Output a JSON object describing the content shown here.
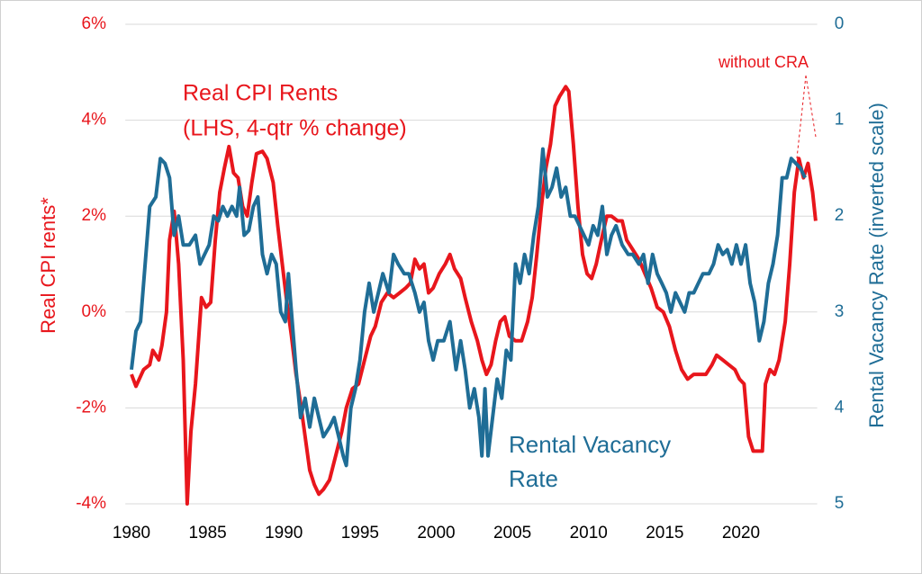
{
  "chart_data": {
    "type": "line",
    "xlim": [
      1979.6,
      2025.0
    ],
    "xticks": [
      1980,
      1985,
      1990,
      1995,
      2000,
      2005,
      2010,
      2015,
      2020
    ],
    "ylim": [
      -4,
      6
    ],
    "yticks": [
      {
        "value": -4,
        "label": "-4%"
      },
      {
        "value": -2,
        "label": "-2%"
      },
      {
        "value": 0,
        "label": "0%"
      },
      {
        "value": 2,
        "label": "2%"
      },
      {
        "value": 4,
        "label": "4%"
      },
      {
        "value": 6,
        "label": "6%"
      }
    ],
    "y2lim": [
      0,
      5
    ],
    "y2_inverted": true,
    "y2ticks": [
      0,
      1,
      2,
      3,
      4,
      5
    ],
    "ylabel": "Real CPI rents*",
    "y2label": "Rental Vacancy Rate (inverted scale)",
    "grid": true,
    "annotations": [
      "(LHS, 4-qtr % change)",
      "without CRA"
    ],
    "series": [
      {
        "name": "Real CPI Rents",
        "color": "#e8161c",
        "x": [
          1980.0,
          1980.3,
          1980.8,
          1981.2,
          1981.4,
          1981.8,
          1982.0,
          1982.3,
          1982.5,
          1982.8,
          1983.1,
          1983.4,
          1983.66,
          1983.9,
          1984.2,
          1984.6,
          1984.9,
          1985.2,
          1985.5,
          1985.8,
          1986.1,
          1986.4,
          1986.7,
          1987.0,
          1987.3,
          1987.6,
          1987.9,
          1988.2,
          1988.6,
          1988.9,
          1989.3,
          1989.6,
          1989.9,
          1990.2,
          1990.5,
          1990.8,
          1991.1,
          1991.4,
          1991.7,
          1992.0,
          1992.3,
          1992.6,
          1993.0,
          1993.4,
          1993.8,
          1994.1,
          1994.5,
          1994.9,
          1995.3,
          1995.7,
          1996.0,
          1996.4,
          1996.8,
          1997.2,
          1997.6,
          1998.0,
          1998.3,
          1998.6,
          1998.9,
          1999.2,
          1999.5,
          1999.8,
          2000.2,
          2000.6,
          2000.9,
          2001.2,
          2001.6,
          2001.9,
          2002.3,
          2002.7,
          2003.0,
          2003.3,
          2003.6,
          2003.9,
          2004.2,
          2004.5,
          2004.8,
          2005.2,
          2005.6,
          2006.0,
          2006.3,
          2006.6,
          2006.9,
          2007.2,
          2007.5,
          2007.8,
          2008.1,
          2008.5,
          2008.7,
          2009.0,
          2009.3,
          2009.6,
          2009.9,
          2010.2,
          2010.5,
          2010.9,
          2011.2,
          2011.5,
          2011.9,
          2012.2,
          2012.5,
          2012.9,
          2013.3,
          2013.7,
          2014.1,
          2014.5,
          2014.9,
          2015.3,
          2015.7,
          2016.1,
          2016.5,
          2016.9,
          2017.3,
          2017.7,
          2018.1,
          2018.4,
          2018.8,
          2019.2,
          2019.6,
          2019.9,
          2020.2,
          2020.5,
          2020.8,
          2021.1,
          2021.4,
          2021.6,
          2021.9,
          2022.2,
          2022.5,
          2022.9,
          2023.2,
          2023.5,
          2023.8,
          2024.1,
          2024.4,
          2024.7,
          2024.9
        ],
        "values": [
          -1.3,
          -1.55,
          -1.2,
          -1.1,
          -0.8,
          -1.0,
          -0.7,
          0.0,
          1.5,
          2.1,
          1.0,
          -1.0,
          -4.0,
          -2.5,
          -1.5,
          0.3,
          0.1,
          0.2,
          1.5,
          2.5,
          3.0,
          3.45,
          2.9,
          2.8,
          2.2,
          2.0,
          2.7,
          3.3,
          3.35,
          3.2,
          2.7,
          1.8,
          1.0,
          0.2,
          -0.5,
          -1.3,
          -1.9,
          -2.6,
          -3.3,
          -3.6,
          -3.8,
          -3.7,
          -3.5,
          -3.0,
          -2.5,
          -2.0,
          -1.6,
          -1.5,
          -1.0,
          -0.5,
          -0.3,
          0.2,
          0.4,
          0.3,
          0.4,
          0.5,
          0.6,
          1.1,
          0.9,
          1.0,
          0.4,
          0.5,
          0.8,
          1.0,
          1.2,
          0.9,
          0.7,
          0.3,
          -0.2,
          -0.6,
          -1.0,
          -1.3,
          -1.1,
          -0.6,
          -0.2,
          -0.1,
          -0.5,
          -0.6,
          -0.6,
          -0.2,
          0.3,
          1.2,
          2.2,
          3.0,
          3.5,
          4.3,
          4.5,
          4.7,
          4.6,
          3.5,
          2.2,
          1.2,
          0.8,
          0.7,
          1.0,
          1.6,
          2.0,
          2.0,
          1.9,
          1.9,
          1.5,
          1.3,
          1.1,
          0.8,
          0.5,
          0.1,
          0.0,
          -0.3,
          -0.8,
          -1.2,
          -1.4,
          -1.3,
          -1.3,
          -1.3,
          -1.1,
          -0.9,
          -1.0,
          -1.1,
          -1.2,
          -1.4,
          -1.5,
          -2.6,
          -2.9,
          -2.9,
          -2.9,
          -1.5,
          -1.2,
          -1.3,
          -1.0,
          -0.2,
          1.0,
          2.5,
          3.2,
          2.8,
          3.1,
          2.5,
          1.9
        ]
      },
      {
        "name": "Rental Vacancy Rate",
        "color": "#1f6d96",
        "axis": "y2",
        "x": [
          1980.0,
          1980.3,
          1980.6,
          1980.9,
          1981.2,
          1981.6,
          1981.9,
          1982.2,
          1982.5,
          1982.8,
          1983.1,
          1983.4,
          1983.8,
          1984.2,
          1984.5,
          1984.8,
          1985.1,
          1985.4,
          1985.7,
          1986.0,
          1986.3,
          1986.6,
          1986.9,
          1987.1,
          1987.4,
          1987.7,
          1988.0,
          1988.3,
          1988.6,
          1988.9,
          1989.2,
          1989.5,
          1989.8,
          1990.1,
          1990.3,
          1990.5,
          1990.8,
          1991.1,
          1991.4,
          1991.7,
          1992.0,
          1992.3,
          1992.6,
          1993.0,
          1993.3,
          1993.6,
          1993.9,
          1994.1,
          1994.4,
          1994.7,
          1995.0,
          1995.3,
          1995.6,
          1995.9,
          1996.2,
          1996.5,
          1996.9,
          1997.2,
          1997.5,
          1997.9,
          1998.2,
          1998.6,
          1998.9,
          1999.2,
          1999.5,
          1999.8,
          2000.1,
          2000.5,
          2000.9,
          2001.3,
          2001.6,
          2001.9,
          2002.2,
          2002.5,
          2002.8,
          2003.0,
          2003.2,
          2003.4,
          2003.7,
          2004.0,
          2004.3,
          2004.6,
          2004.9,
          2005.2,
          2005.5,
          2005.8,
          2006.1,
          2006.4,
          2006.7,
          2007.0,
          2007.3,
          2007.6,
          2007.9,
          2008.2,
          2008.5,
          2008.8,
          2009.1,
          2009.4,
          2009.7,
          2010.0,
          2010.3,
          2010.6,
          2010.9,
          2011.2,
          2011.5,
          2011.8,
          2012.2,
          2012.6,
          2012.9,
          2013.3,
          2013.6,
          2013.9,
          2014.2,
          2014.5,
          2014.8,
          2015.1,
          2015.4,
          2015.7,
          2016.0,
          2016.3,
          2016.6,
          2016.9,
          2017.2,
          2017.5,
          2017.9,
          2018.2,
          2018.5,
          2018.8,
          2019.1,
          2019.4,
          2019.7,
          2020.0,
          2020.3,
          2020.6,
          2020.9,
          2021.2,
          2021.5,
          2021.8,
          2022.1,
          2022.4,
          2022.7,
          2023.0,
          2023.3,
          2023.6,
          2023.9,
          2024.2
        ],
        "values": [
          3.6,
          3.2,
          3.1,
          2.5,
          1.9,
          1.8,
          1.4,
          1.45,
          1.6,
          2.2,
          2.0,
          2.3,
          2.3,
          2.2,
          2.5,
          2.4,
          2.3,
          2.0,
          2.05,
          1.9,
          2.0,
          1.9,
          2.0,
          1.7,
          2.2,
          2.15,
          1.9,
          1.8,
          2.4,
          2.6,
          2.4,
          2.5,
          3.0,
          3.1,
          2.6,
          3.0,
          3.6,
          4.1,
          3.9,
          4.2,
          3.9,
          4.1,
          4.3,
          4.2,
          4.1,
          4.3,
          4.5,
          4.6,
          4.0,
          3.8,
          3.5,
          3.0,
          2.7,
          3.0,
          2.8,
          2.6,
          2.8,
          2.4,
          2.5,
          2.6,
          2.6,
          2.8,
          3.0,
          2.9,
          3.3,
          3.5,
          3.3,
          3.3,
          3.1,
          3.6,
          3.3,
          3.6,
          4.0,
          3.8,
          4.1,
          4.5,
          3.8,
          4.5,
          4.1,
          3.7,
          3.9,
          3.4,
          3.5,
          2.5,
          2.7,
          2.4,
          2.6,
          2.2,
          1.9,
          1.3,
          1.8,
          1.7,
          1.5,
          1.8,
          1.7,
          2.0,
          2.0,
          2.1,
          2.2,
          2.3,
          2.1,
          2.2,
          1.9,
          2.4,
          2.2,
          2.1,
          2.3,
          2.4,
          2.4,
          2.5,
          2.4,
          2.7,
          2.4,
          2.6,
          2.7,
          2.8,
          3.0,
          2.8,
          2.9,
          3.0,
          2.8,
          2.8,
          2.7,
          2.6,
          2.6,
          2.5,
          2.3,
          2.4,
          2.35,
          2.5,
          2.3,
          2.5,
          2.3,
          2.7,
          2.9,
          3.3,
          3.1,
          2.7,
          2.5,
          2.2,
          1.6,
          1.6,
          1.4,
          1.45,
          1.5,
          1.6
        ]
      }
    ]
  }
}
